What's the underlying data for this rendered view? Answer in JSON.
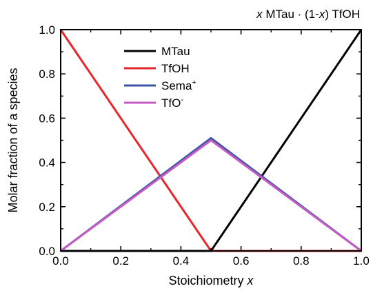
{
  "chart_data": {
    "type": "line",
    "title": {
      "var": "x",
      "part1": " MTau · (1-",
      "var2": "x",
      "part2": ") TfOH"
    },
    "xlabel": {
      "text": "Stoichiometry ",
      "var": "x"
    },
    "ylabel": "Molar fraction of a species",
    "xlim": [
      0.0,
      1.0
    ],
    "ylim": [
      0.0,
      1.0
    ],
    "xticks": [
      0.0,
      0.2,
      0.4,
      0.6,
      0.8,
      1.0
    ],
    "yticks": [
      0.0,
      0.2,
      0.4,
      0.6,
      0.8,
      1.0
    ],
    "xtick_labels": [
      "0.0",
      "0.2",
      "0.4",
      "0.6",
      "0.8",
      "1.0"
    ],
    "ytick_labels": [
      "0.0",
      "0.2",
      "0.4",
      "0.6",
      "0.8",
      "1.0"
    ],
    "grid": false,
    "legend_position": "top-center",
    "series": [
      {
        "name": "MTau",
        "color": "#000000",
        "x": [
          0.0,
          0.5,
          1.0
        ],
        "y": [
          0.0,
          0.0,
          1.0
        ]
      },
      {
        "name": "TfOH",
        "color": "#e8262b",
        "x": [
          0.0,
          0.5,
          1.0
        ],
        "y": [
          1.0,
          0.0,
          0.0
        ]
      },
      {
        "name": "Sema",
        "sup": "+",
        "color": "#3c55a6",
        "x": [
          0.0,
          0.5,
          1.0
        ],
        "y": [
          0.0,
          0.51,
          0.0
        ]
      },
      {
        "name": "TfO",
        "sup": "-",
        "color": "#c55bc4",
        "x": [
          0.0,
          0.5,
          1.0
        ],
        "y": [
          0.0,
          0.5,
          0.0
        ]
      }
    ]
  }
}
